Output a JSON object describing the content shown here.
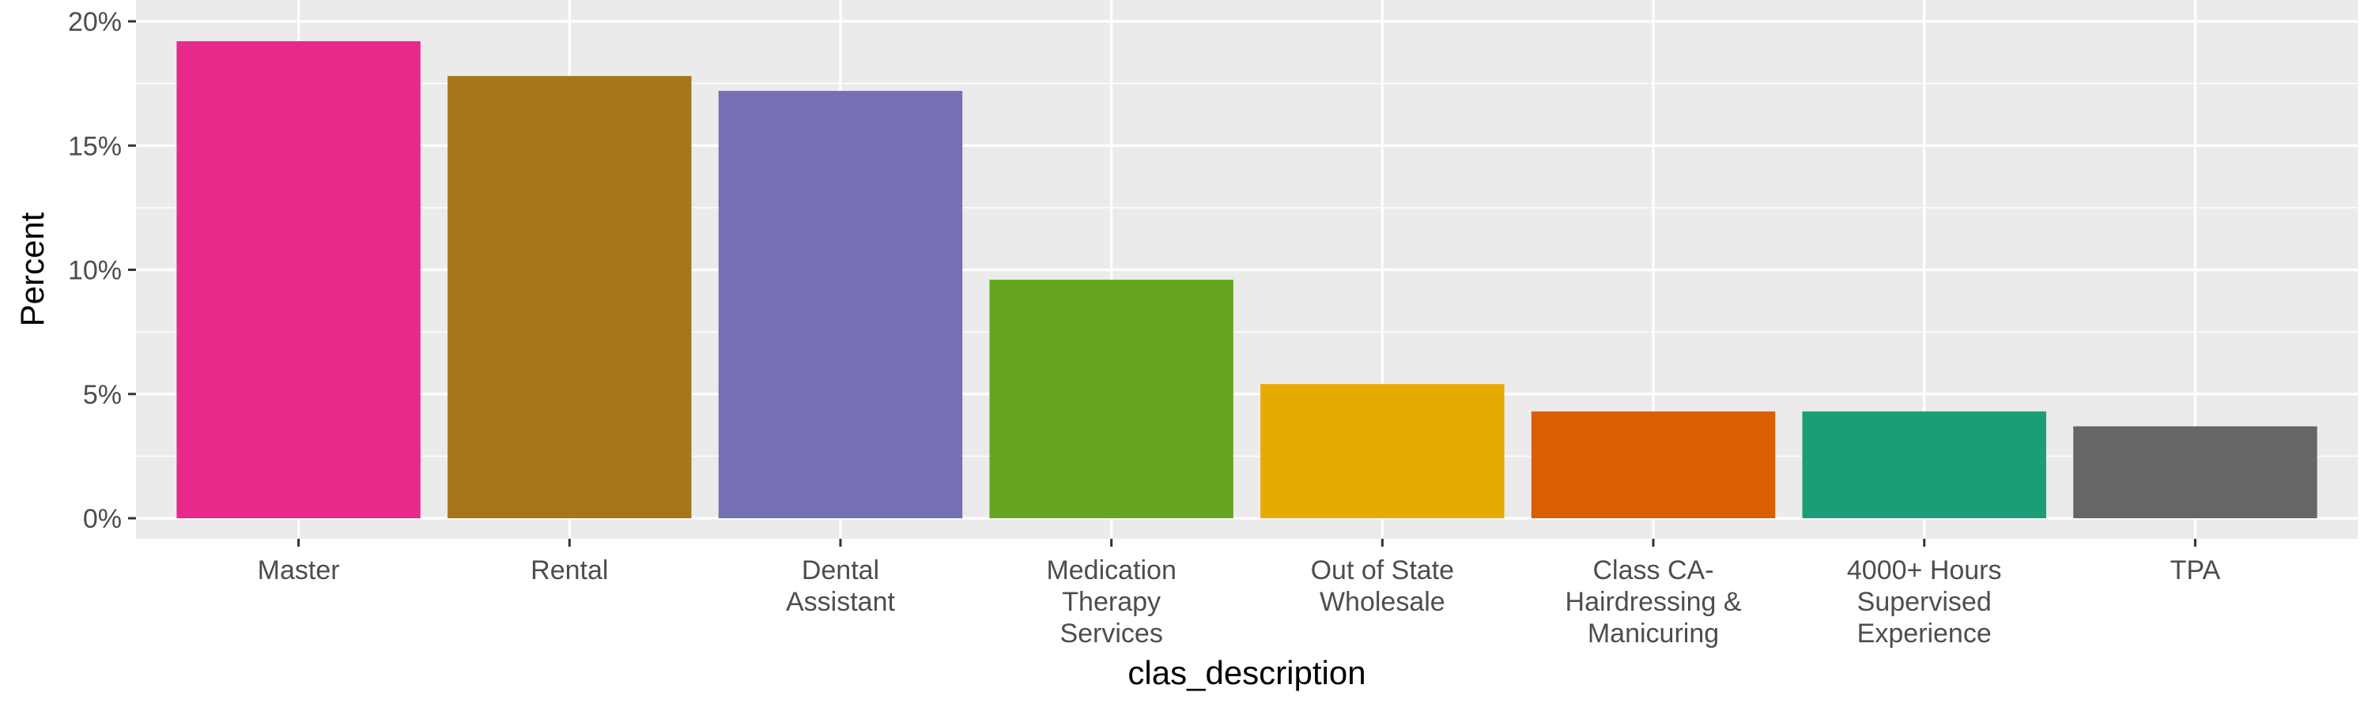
{
  "chart_data": {
    "type": "bar",
    "title": "",
    "xlabel": "clas_description",
    "ylabel": "Percent",
    "categories": [
      [
        "Master"
      ],
      [
        "Rental"
      ],
      [
        "Dental",
        "Assistant"
      ],
      [
        "Medication",
        "Therapy",
        "Services"
      ],
      [
        "Out of State",
        "Wholesale"
      ],
      [
        "Class CA-",
        "Hairdressing &",
        "Manicuring"
      ],
      [
        "4000+ Hours",
        "Supervised",
        "Experience"
      ],
      [
        "TPA"
      ]
    ],
    "values": [
      19.2,
      17.8,
      17.2,
      9.6,
      5.4,
      4.3,
      4.3,
      3.7
    ],
    "colors": [
      "#e7298a",
      "#a6761d",
      "#7570b3",
      "#66a61e",
      "#e6ab02",
      "#d95f02",
      "#1b9e77",
      "#666666"
    ],
    "ylim": [
      0,
      20
    ],
    "yticks": [
      0,
      5,
      10,
      15,
      20
    ],
    "ytick_labels": [
      "0%",
      "5%",
      "10%",
      "15%",
      "20%"
    ],
    "grid": true,
    "panel_background": "#ebebeb",
    "legend": "none"
  }
}
